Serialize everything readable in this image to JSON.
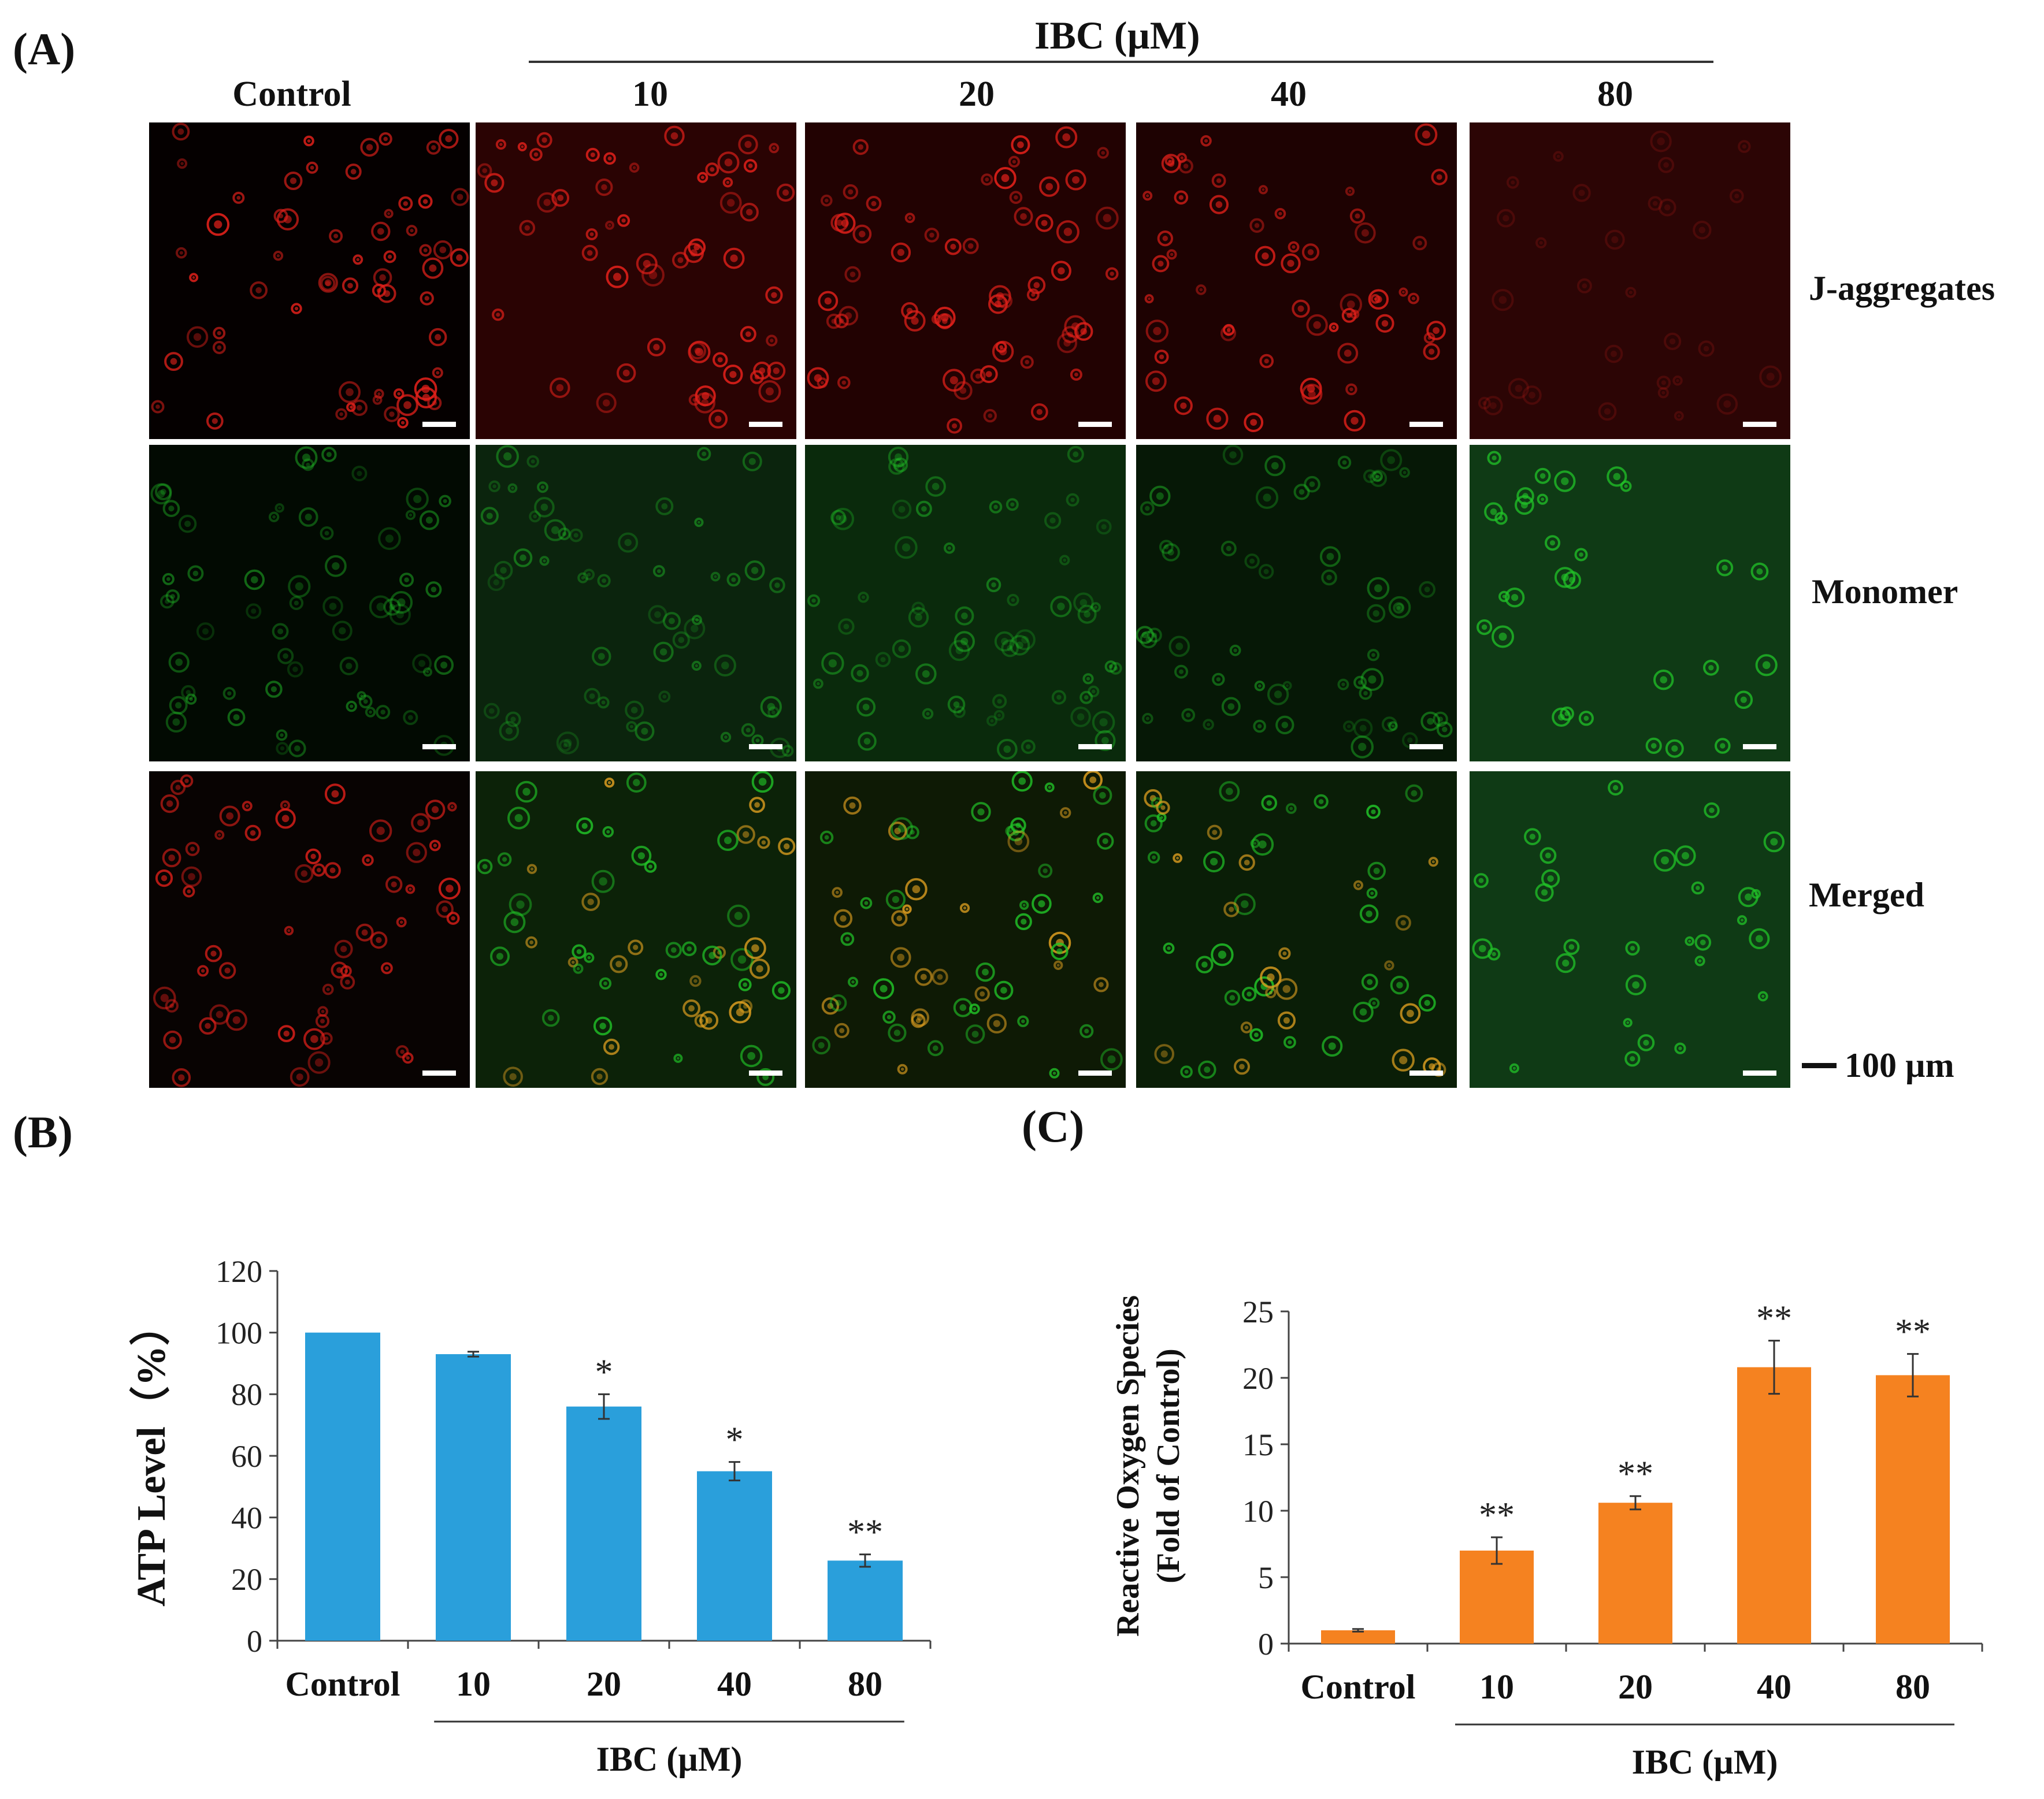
{
  "panel_a": {
    "label": "(A)",
    "group_label": "IBC (µM)",
    "columns": [
      "Control",
      "10",
      "20",
      "40",
      "80"
    ],
    "rows": [
      "J-aggregates",
      "Monomer",
      "Merged"
    ],
    "scale_label": "100 µm",
    "colors": {
      "red_stain": "#e0201a",
      "green_stain": "#21c428",
      "merged_yellow": "#e0a020"
    }
  },
  "chart_data": [
    {
      "panel": "(B)",
      "type": "bar",
      "categories": [
        "Control",
        "10",
        "20",
        "40",
        "80"
      ],
      "values": [
        100,
        93,
        76,
        55,
        26
      ],
      "errors": [
        0,
        0.8,
        4,
        3,
        2
      ],
      "significance": [
        "",
        "",
        "*",
        "*",
        "**"
      ],
      "ylabel": "ATP Level（%）",
      "xgroup_label": "IBC (µM)",
      "ylim": [
        0,
        120
      ],
      "yticks": [
        0,
        20,
        40,
        60,
        80,
        100,
        120
      ],
      "color": "#2a9fdb"
    },
    {
      "panel": "(C)",
      "type": "bar",
      "categories": [
        "Control",
        "10",
        "20",
        "40",
        "80"
      ],
      "values": [
        1,
        7,
        10.6,
        20.8,
        20.2
      ],
      "errors": [
        0.1,
        1,
        0.5,
        2,
        1.6
      ],
      "significance": [
        "",
        "**",
        "**",
        "**",
        "**"
      ],
      "ylabel_lines": [
        "Reactive Oxygen Species",
        "(Fold of Control)"
      ],
      "xgroup_label": "IBC (µM)",
      "ylim": [
        0,
        25
      ],
      "yticks": [
        0,
        5,
        10,
        15,
        20,
        25
      ],
      "color": "#f58220"
    }
  ]
}
